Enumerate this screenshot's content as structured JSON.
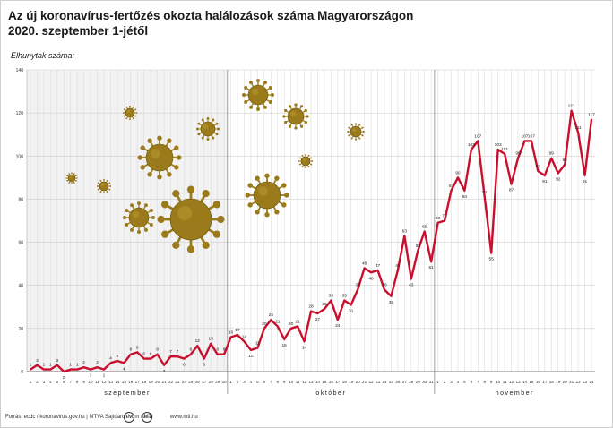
{
  "header": {
    "title_line1": "Az új koronavírus-fertőzés okozta halálozások száma Magyarországon",
    "title_line2": "2020. szeptember 1-jétől",
    "subtitle": "Elhunytak száma:"
  },
  "footer": {
    "source": "Forrás: ecdc / koronavirus.gov.hu | MTVA Sajtóarchívum / MTI",
    "site": "www.mti.hu",
    "logo1": "MTI",
    "logo2": "MTVA"
  },
  "colors": {
    "line": "#c8102e",
    "virus": "#9a7a1a",
    "virus_dark": "#6b5410",
    "shade": "#f2f2f2"
  },
  "chart_data": {
    "type": "line",
    "title": "Az új koronavírus-fertőzés okozta halálozások száma Magyarországon 2020. szeptember 1-jétől",
    "ylabel": "Elhunytak száma:",
    "ylim": [
      0,
      140
    ],
    "yticks": [
      0,
      20,
      40,
      60,
      80,
      100,
      120,
      140
    ],
    "grid": true,
    "months": [
      {
        "name": "szeptember",
        "days": 30
      },
      {
        "name": "október",
        "days": 31
      },
      {
        "name": "november",
        "days": 24
      }
    ],
    "series": [
      {
        "name": "Elhunytak száma",
        "values": [
          1,
          3,
          1,
          1,
          3,
          0,
          1,
          1,
          2,
          1,
          2,
          1,
          4,
          5,
          4,
          8,
          9,
          6,
          6,
          8,
          3,
          7,
          7,
          6,
          8,
          12,
          6,
          13,
          8,
          8,
          16,
          17,
          14,
          10,
          11,
          20,
          24,
          21,
          15,
          20,
          21,
          14,
          28,
          27,
          29,
          33,
          24,
          33,
          31,
          38,
          48,
          46,
          47,
          38,
          35,
          47,
          63,
          43,
          56,
          65,
          51,
          69,
          70,
          84,
          90,
          84,
          103,
          107,
          81,
          55,
          103,
          101,
          87,
          99,
          107,
          107,
          93,
          91,
          99,
          92,
          96,
          121,
          111,
          91,
          117
        ],
        "labels": [
          1,
          3,
          1,
          1,
          3,
          0,
          1,
          1,
          2,
          1,
          2,
          1,
          4,
          5,
          4,
          8,
          9,
          6,
          6,
          8,
          3,
          7,
          7,
          6,
          8,
          12,
          6,
          13,
          8,
          8,
          16,
          17,
          14,
          10,
          11,
          20,
          24,
          21,
          15,
          20,
          21,
          14,
          28,
          27,
          29,
          33,
          24,
          33,
          31,
          38,
          48,
          46,
          47,
          38,
          35,
          47,
          63,
          43,
          56,
          65,
          51,
          69,
          70,
          84,
          90,
          84,
          103,
          107,
          81,
          55,
          103,
          101,
          87,
          99,
          107,
          107,
          93,
          91,
          99,
          92,
          96,
          121,
          111,
          91,
          117
        ]
      }
    ]
  }
}
